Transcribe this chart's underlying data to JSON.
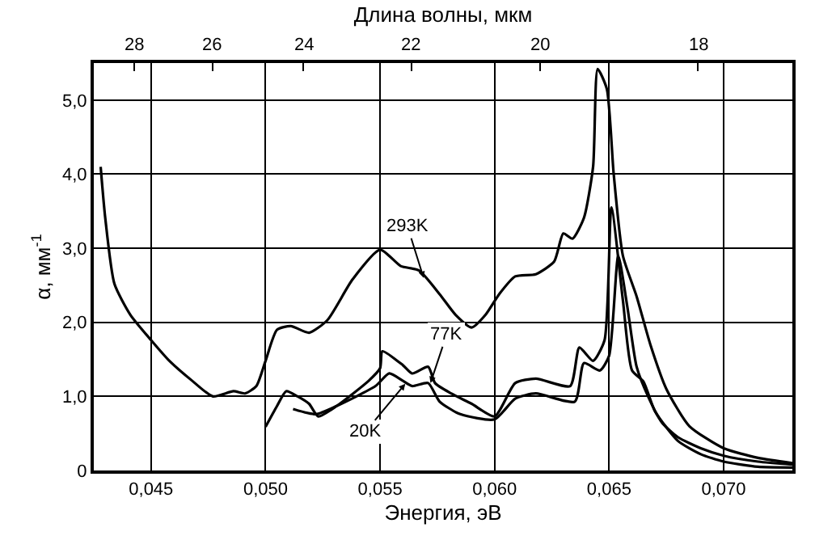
{
  "chart_data": {
    "type": "line",
    "xlabel": "Энергия, эВ",
    "x2label": "Длина волны, мкм",
    "ylabel": "α, мм$^{-1}$",
    "xlim": [
      0.0425,
      0.073
    ],
    "ylim": [
      0,
      5.5
    ],
    "xticks": [
      {
        "value": 0.045,
        "label": "0,045"
      },
      {
        "value": 0.05,
        "label": "0,050"
      },
      {
        "value": 0.055,
        "label": "0,055"
      },
      {
        "value": 0.06,
        "label": "0,060"
      },
      {
        "value": 0.065,
        "label": "0,065"
      },
      {
        "value": 0.07,
        "label": "0,070"
      }
    ],
    "yticks": [
      0,
      {
        "value": 1,
        "label": "1,0"
      },
      {
        "value": 2,
        "label": "2,0"
      },
      {
        "value": 3,
        "label": "3,0"
      },
      {
        "value": 4,
        "label": "4,0"
      },
      {
        "value": 5,
        "label": "5,0"
      }
    ],
    "grid": true,
    "marker": "none",
    "line_style": "solid",
    "series": [
      {
        "color": "#000000",
        "x": [
          0.0428,
          0.043,
          0.0434,
          0.0441,
          0.045,
          0.0458,
          0.0468,
          0.0477,
          0.0486,
          0.0491,
          0.0496,
          0.05,
          0.0505,
          0.0511,
          0.0519,
          0.0527,
          0.0538,
          0.055,
          0.0559,
          0.0567,
          0.0576,
          0.0583,
          0.059,
          0.0596,
          0.0602,
          0.0609,
          0.0618,
          0.0626,
          0.063,
          0.0634,
          0.0639,
          0.0643,
          0.0645,
          0.0649,
          0.0652,
          0.0656,
          0.0662,
          0.0668,
          0.0675,
          0.0685,
          0.07,
          0.0715,
          0.073
        ],
        "values": [
          4.1,
          3.41,
          2.52,
          2.1,
          1.76,
          1.48,
          1.21,
          1.0,
          1.07,
          1.04,
          1.14,
          1.48,
          1.9,
          1.95,
          1.86,
          2.03,
          2.58,
          2.98,
          2.76,
          2.7,
          2.38,
          2.1,
          1.93,
          2.1,
          2.38,
          2.62,
          2.65,
          2.82,
          3.2,
          3.13,
          3.41,
          4.1,
          5.42,
          5.15,
          4.0,
          2.9,
          2.35,
          1.7,
          1.1,
          0.6,
          0.3,
          0.17,
          0.1
        ]
      },
      {
        "color": "#000000",
        "x": [
          0.05,
          0.0505,
          0.0509,
          0.0514,
          0.0519,
          0.0523,
          0.0531,
          0.0545,
          0.055,
          0.0551,
          0.056,
          0.0564,
          0.0571,
          0.0574,
          0.0581,
          0.059,
          0.06,
          0.0609,
          0.0618,
          0.0633,
          0.0637,
          0.0643,
          0.0648,
          0.0651,
          0.0656,
          0.066,
          0.0665,
          0.067,
          0.068,
          0.069,
          0.07,
          0.0715,
          0.073
        ],
        "values": [
          0.59,
          0.87,
          1.07,
          1.0,
          0.9,
          0.73,
          0.87,
          1.21,
          1.38,
          1.61,
          1.42,
          1.31,
          1.4,
          1.18,
          1.04,
          0.9,
          0.73,
          1.18,
          1.24,
          1.14,
          1.66,
          1.48,
          1.76,
          3.55,
          2.3,
          1.35,
          1.2,
          0.8,
          0.4,
          0.22,
          0.12,
          0.05,
          0.04
        ]
      },
      {
        "color": "#000000",
        "x": [
          0.0512,
          0.0522,
          0.0531,
          0.0548,
          0.0554,
          0.056,
          0.0564,
          0.0571,
          0.0576,
          0.0585,
          0.06,
          0.0609,
          0.0618,
          0.0635,
          0.0639,
          0.0646,
          0.065,
          0.0654,
          0.0658,
          0.0662,
          0.0667,
          0.0673,
          0.068,
          0.069,
          0.07,
          0.0715,
          0.073
        ],
        "values": [
          0.83,
          0.76,
          0.87,
          1.14,
          1.31,
          1.21,
          1.14,
          1.18,
          0.93,
          0.76,
          0.69,
          0.97,
          1.04,
          0.93,
          1.45,
          1.35,
          1.55,
          2.9,
          2.2,
          1.4,
          1.0,
          0.65,
          0.45,
          0.3,
          0.2,
          0.12,
          0.08
        ]
      }
    ],
    "annotations": [
      {
        "text": "293K",
        "x": 0.0569,
        "y": 2.6
      },
      {
        "text": "77K",
        "x": 0.0572,
        "y": 1.18
      },
      {
        "text": "20K",
        "x": 0.0561,
        "y": 1.17
      },
      "28",
      "26",
      "24",
      "22",
      "20",
      "18"
    ]
  }
}
